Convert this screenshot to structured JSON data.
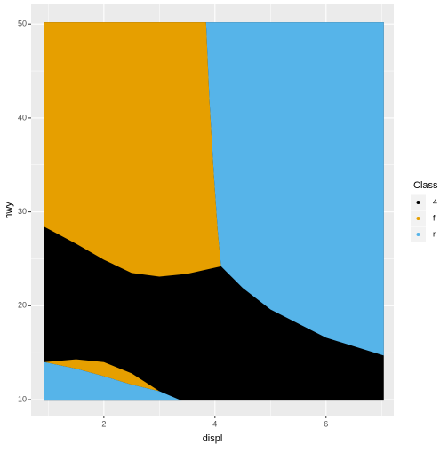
{
  "chart_data": {
    "type": "region",
    "x_label": "displ",
    "y_label": "hwy",
    "legend_title": "Class",
    "xlim": [
      0.69,
      7.22
    ],
    "ylim": [
      8.3,
      52.1
    ],
    "xticks": [
      2,
      4,
      6
    ],
    "yticks": [
      10,
      20,
      30,
      40,
      50
    ],
    "xminor": [
      1,
      3,
      5,
      7
    ],
    "yminor": [
      15,
      25,
      35,
      45
    ],
    "grid": true,
    "legend": "right",
    "series": [
      {
        "name": "4",
        "color": "#000000",
        "polygons": [
          {
            "x": [
              0.93,
              7.04,
              7.04,
              0.93
            ],
            "y": [
              50.2,
              50.2,
              9.9,
              9.9
            ]
          }
        ]
      },
      {
        "name": "f",
        "color": "#E69F00",
        "polygons": [
          {
            "x": [
              0.93,
              3.84,
              3.9,
              3.98,
              4.05,
              4.11,
              3.5,
              3.0,
              2.5,
              2.0,
              1.5,
              0.93
            ],
            "y": [
              50.2,
              50.2,
              42,
              34,
              28,
              24.2,
              23.4,
              23.1,
              23.5,
              24.9,
              26.6,
              28.4
            ]
          },
          {
            "x": [
              0.93,
              1.5,
              2.0,
              2.5,
              3.0,
              2.5,
              2.0,
              1.5,
              0.93
            ],
            "y": [
              14.0,
              14.3,
              14.0,
              12.8,
              10.9,
              11.6,
              12.5,
              13.3,
              14.0
            ]
          }
        ]
      },
      {
        "name": "r",
        "color": "#56B4E9",
        "polygons": [
          {
            "x": [
              3.84,
              7.04,
              7.04,
              6.0,
              5.0,
              4.5,
              4.11,
              4.05,
              3.98,
              3.9
            ],
            "y": [
              50.2,
              50.2,
              14.7,
              16.6,
              19.6,
              21.9,
              24.2,
              28,
              34,
              42
            ]
          },
          {
            "x": [
              0.93,
              1.5,
              2.0,
              2.5,
              3.0,
              3.4,
              0.93
            ],
            "y": [
              14.0,
              13.3,
              12.5,
              11.6,
              10.9,
              9.9,
              9.9
            ]
          }
        ]
      }
    ]
  }
}
